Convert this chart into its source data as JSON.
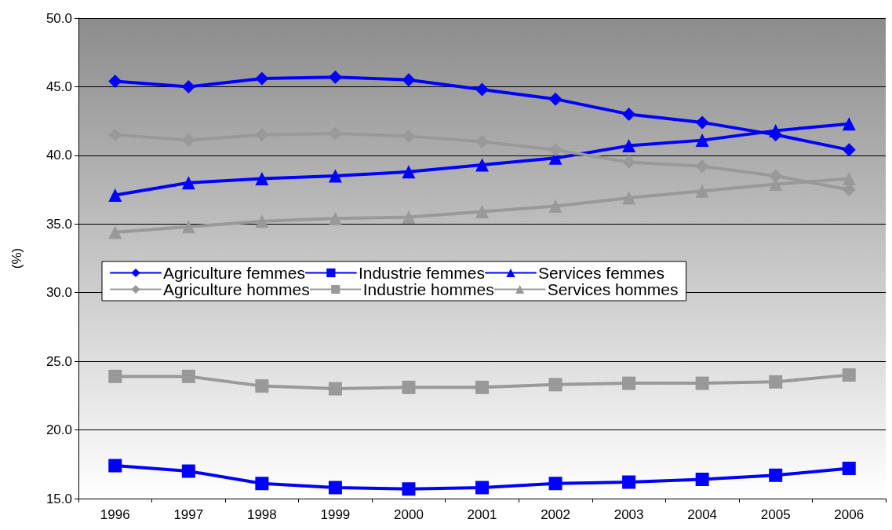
{
  "chart_data": {
    "type": "line",
    "ylabel": "(%)",
    "categories": [
      "1996",
      "1997",
      "1998",
      "1999",
      "2000",
      "2001",
      "2002",
      "2003",
      "2004",
      "2005",
      "2006"
    ],
    "ylim": [
      15,
      50
    ],
    "yticks": [
      {
        "value": 15,
        "label": "15.0"
      },
      {
        "value": 20,
        "label": "20.0"
      },
      {
        "value": 25,
        "label": "25.0"
      },
      {
        "value": 30,
        "label": "30.0"
      },
      {
        "value": 35,
        "label": "35.0"
      },
      {
        "value": 40,
        "label": "40.0"
      },
      {
        "value": 45,
        "label": "45.0"
      },
      {
        "value": 50,
        "label": "50.0"
      }
    ],
    "grid": "y",
    "legend": "left",
    "line_style": "solid",
    "series": [
      {
        "name": "Agriculture femmes",
        "color": "#0000ff",
        "marker": "diamond",
        "values": [
          45.4,
          45.0,
          45.6,
          45.7,
          45.5,
          44.8,
          44.1,
          43.0,
          42.4,
          41.5,
          40.4
        ]
      },
      {
        "name": "Industrie femmes",
        "color": "#0000ff",
        "marker": "square",
        "values": [
          17.4,
          17.0,
          16.1,
          15.8,
          15.7,
          15.8,
          16.1,
          16.2,
          16.4,
          16.7,
          17.2
        ]
      },
      {
        "name": "Services femmes",
        "color": "#0000ff",
        "marker": "triangle",
        "values": [
          37.1,
          38.0,
          38.3,
          38.5,
          38.8,
          39.3,
          39.8,
          40.7,
          41.1,
          41.8,
          42.3
        ]
      },
      {
        "name": "Agriculture hommes",
        "color": "#999999",
        "marker": "diamond",
        "values": [
          41.5,
          41.1,
          41.5,
          41.6,
          41.4,
          41.0,
          40.4,
          39.5,
          39.2,
          38.5,
          37.5
        ]
      },
      {
        "name": "Industrie hommes",
        "color": "#999999",
        "marker": "square",
        "values": [
          23.9,
          23.9,
          23.2,
          23.0,
          23.1,
          23.1,
          23.3,
          23.4,
          23.4,
          23.5,
          24.0
        ]
      },
      {
        "name": "Services hommes",
        "color": "#999999",
        "marker": "triangle",
        "values": [
          34.4,
          34.8,
          35.2,
          35.4,
          35.5,
          35.9,
          36.3,
          36.9,
          37.4,
          37.9,
          38.3
        ]
      }
    ]
  }
}
